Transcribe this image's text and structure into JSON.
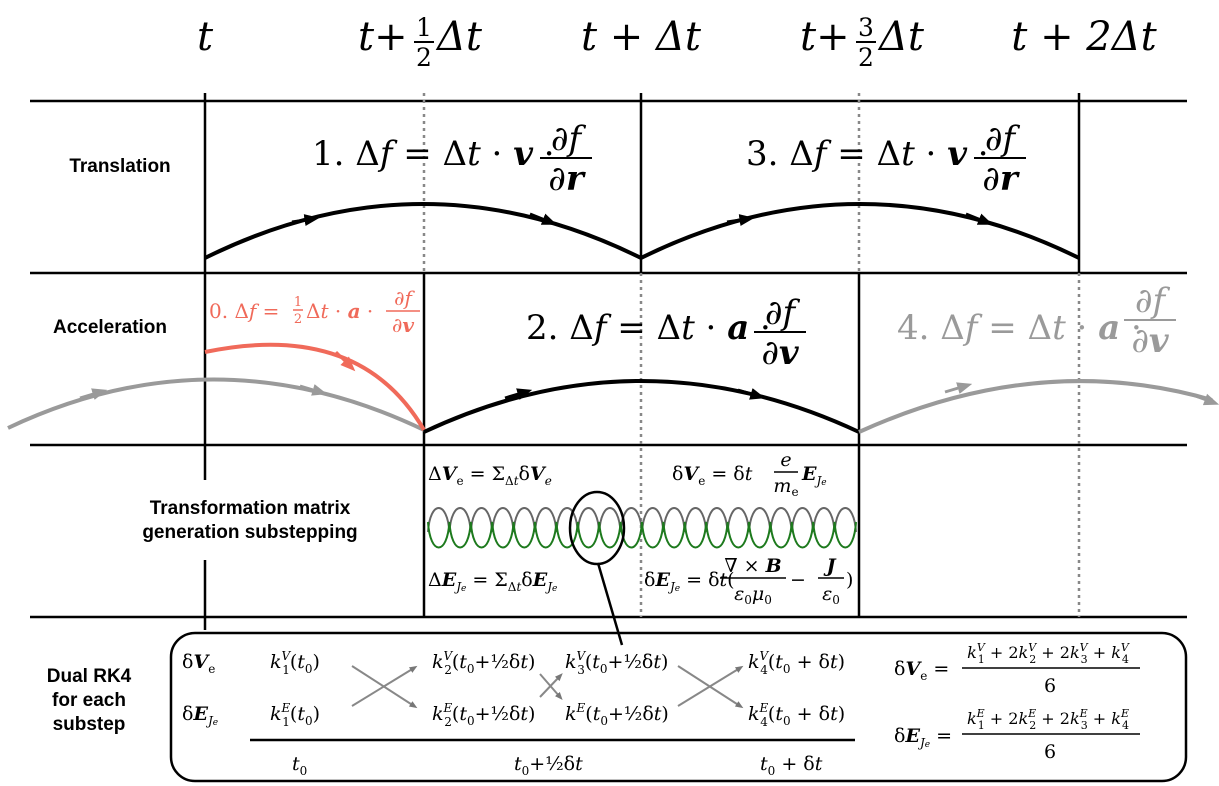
{
  "time_axis": {
    "labels": [
      "t",
      "t+½Δt",
      "t + Δt",
      "t+³⁄₂Δt",
      "t + 2Δt"
    ]
  },
  "rows": {
    "translation": "Translation",
    "acceleration": "Acceleration",
    "matrix_line1": "Transformation matrix",
    "matrix_line2": "generation substepping",
    "rk4_line1": "Dual RK4",
    "rk4_line2": "for each",
    "rk4_line3": "substep"
  },
  "equations": {
    "step1": "1. Δf = Δt · v · ∂f/∂r",
    "step3": "3. Δf = Δt · v · ∂f/∂r",
    "step0": "0. Δf = ½Δt · a · ∂f/∂v",
    "step2": "2. Δf = Δt · a · ∂f/∂v",
    "step4": "4. Δf = Δt · a · ∂f/∂v",
    "dVe_sum": "ΔVe = ΣΔt δVe",
    "dVe_def": "δVe = δt (e/me) EJe",
    "dEJ_sum": "ΔEJe = ΣΔt δEJe",
    "dEJ_def": "δEJe = δt (∇×B/ε0μ0 − J/ε0)"
  },
  "rk4": {
    "row_v": "δVe",
    "row_e": "δEJe",
    "k1v": "k1V(t0)",
    "k1e": "k1E(t0)",
    "k2v": "k2V(t0+½δt)",
    "k2e": "k2E(t0+½δt)",
    "k3v": "k3V(t0+½δt)",
    "k3e": "kE(t0+½δt)",
    "k4v": "k4V(t0 + δt)",
    "k4e": "k4E(t0 + δt)",
    "t_start": "t0",
    "t_mid": "t0+½δt",
    "t_end": "t0 + δt",
    "final_v": "δVe = (k1V + 2k2V + 2k3V + k4V) / 6",
    "final_e": "δEJe = (k1E + 2k2E + 2k3E + k4E) / 6"
  },
  "colors": {
    "primary": "#000000",
    "half_step": "#f06a5a",
    "faded": "#9a9a9a",
    "substep_v": "#666666",
    "substep_e": "#1d7a1d"
  }
}
